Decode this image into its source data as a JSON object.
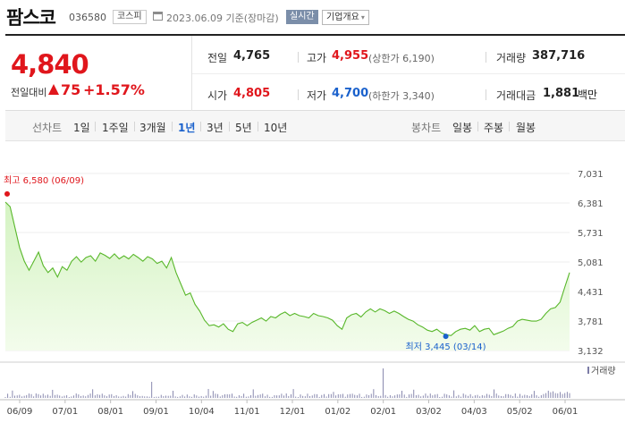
{
  "header": {
    "name": "팜스코",
    "code": "036580",
    "market": "코스피",
    "date": "2023.06.09 기준(장마감)",
    "realtime": "실시간",
    "overview": "기업개요"
  },
  "quote": {
    "price": "4,840",
    "change_label": "전일대비",
    "change": "75",
    "change_pct": "+1.57%",
    "prev_label": "전일",
    "prev": "4,765",
    "high_label": "고가",
    "high": "4,955",
    "upper_limit": "(상한가 6,190)",
    "volume_label": "거래량",
    "volume": "387,716",
    "open_label": "시가",
    "open": "4,805",
    "low_label": "저가",
    "low": "4,700",
    "lower_limit": "(하한가 3,340)",
    "amount_label": "거래대금",
    "amount": "1,881",
    "amount_unit": "백만"
  },
  "periods": {
    "line_label": "선차트",
    "line_items": [
      "1일",
      "1주일",
      "3개월",
      "1년",
      "3년",
      "5년",
      "10년"
    ],
    "active": "1년",
    "candle_label": "봉차트",
    "candle_items": [
      "일봉",
      "주봉",
      "월봉"
    ]
  },
  "colors": {
    "up": "#e0161c",
    "down": "#1a61cc",
    "line": "#58b72a",
    "area_top": "#d4f3c2",
    "area_bottom": "#f3fcec"
  },
  "chart_data": {
    "type": "area",
    "y_ticks": [
      "7,031",
      "6,381",
      "5,731",
      "5,081",
      "4,431",
      "3,781",
      "3,132"
    ],
    "ylim": [
      3132,
      7031
    ],
    "x_ticks": [
      "06/09",
      "07/01",
      "08/01",
      "09/01",
      "10/04",
      "11/01",
      "12/01",
      "01/02",
      "02/01",
      "03/02",
      "04/03",
      "05/02",
      "06/01"
    ],
    "high_label": "최고 6,580 (06/09)",
    "low_label": "최저 3,445 (03/14)",
    "high": {
      "date": "06/09",
      "value": 6580
    },
    "low": {
      "date": "03/14",
      "value": 3445
    },
    "volume_label": "거래량",
    "series": [
      {
        "values": [
          6400,
          6300,
          5850,
          5400,
          5100,
          4900,
          5100,
          5300,
          5000,
          4850,
          4950,
          4750,
          4980,
          4900,
          5100,
          5200,
          5080,
          5180,
          5220,
          5100,
          5280,
          5230,
          5160,
          5260,
          5150,
          5220,
          5150,
          5250,
          5180,
          5100,
          5200,
          5150,
          5050,
          5100,
          4950,
          5180,
          4850,
          4600,
          4350,
          4400,
          4150,
          4000,
          3800,
          3680,
          3700,
          3650,
          3720,
          3600,
          3550,
          3720,
          3750,
          3680,
          3750,
          3800,
          3850,
          3780,
          3880,
          3850,
          3930,
          3980,
          3900,
          3950,
          3900,
          3880,
          3850,
          3950,
          3900,
          3880,
          3850,
          3800,
          3680,
          3600,
          3850,
          3920,
          3950,
          3870,
          3980,
          4050,
          3980,
          4050,
          4010,
          3950,
          4000,
          3950,
          3880,
          3820,
          3780,
          3700,
          3650,
          3580,
          3550,
          3600,
          3520,
          3480,
          3460,
          3550,
          3600,
          3620,
          3580,
          3680,
          3550,
          3600,
          3620,
          3480,
          3520,
          3560,
          3620,
          3660,
          3780,
          3820,
          3800,
          3780,
          3780,
          3820,
          3950,
          4050,
          4080,
          4200,
          4530,
          4850
        ]
      }
    ]
  }
}
